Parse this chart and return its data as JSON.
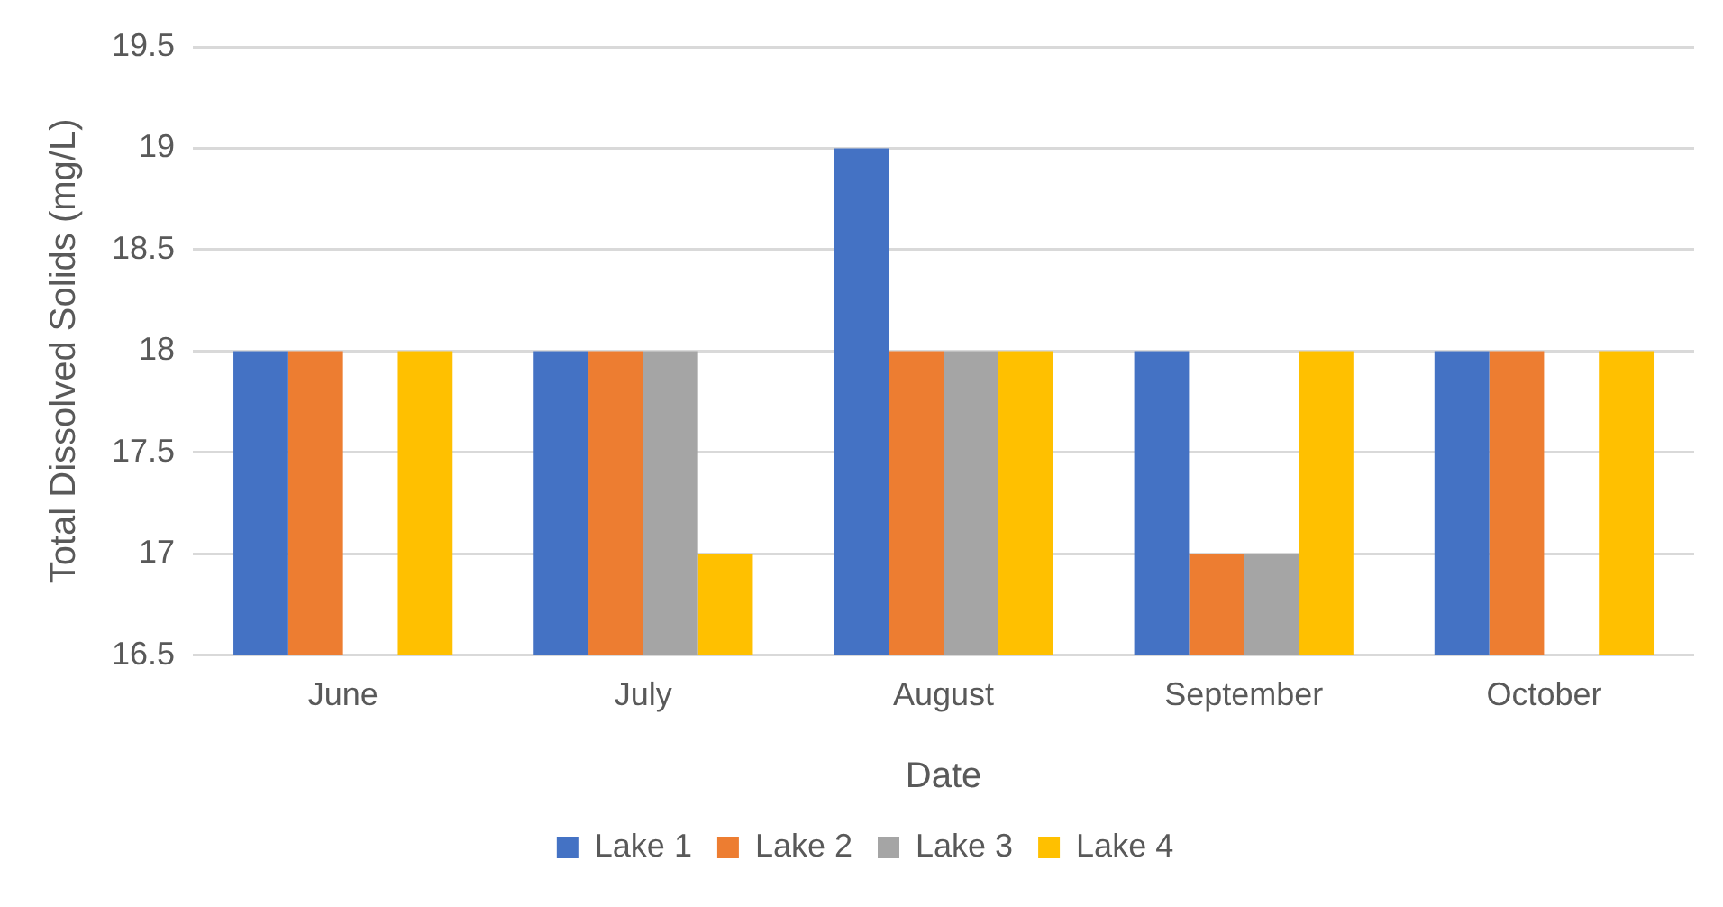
{
  "chart_data": {
    "type": "bar",
    "xlabel": "Date",
    "ylabel": "Total Dissolved Solids (mg/L)",
    "categories": [
      "June",
      "July",
      "August",
      "September",
      "October"
    ],
    "series": [
      {
        "name": "Lake 1",
        "color": "#4472c4",
        "values": [
          18,
          18,
          19,
          18,
          18
        ]
      },
      {
        "name": "Lake 2",
        "color": "#ed7d31",
        "values": [
          18,
          18,
          18,
          17,
          18
        ]
      },
      {
        "name": "Lake 3",
        "color": "#a5a5a5",
        "values": [
          null,
          18,
          18,
          17,
          null
        ]
      },
      {
        "name": "Lake 4",
        "color": "#ffc000",
        "values": [
          18,
          17,
          18,
          18,
          18
        ]
      }
    ],
    "ylim": [
      16.5,
      19.5
    ],
    "yticks": [
      16.5,
      17,
      17.5,
      18,
      18.5,
      19,
      19.5
    ],
    "grid": "y",
    "legend": "bottom"
  }
}
